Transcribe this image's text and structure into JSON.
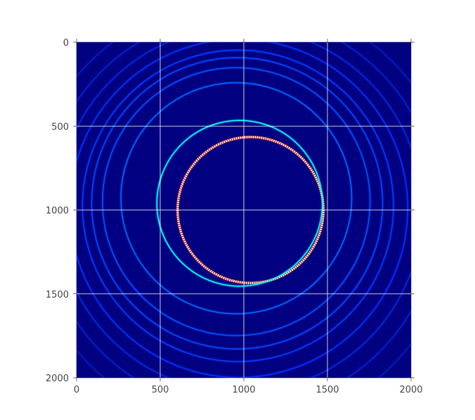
{
  "chart_data": {
    "type": "heatmap",
    "title": "",
    "xlabel": "",
    "ylabel": "",
    "xlim": [
      0,
      2000
    ],
    "ylim": [
      2000,
      0
    ],
    "x_ticks": [
      {
        "value": 0,
        "label": "0"
      },
      {
        "value": 500,
        "label": "500"
      },
      {
        "value": 1000,
        "label": "1000"
      },
      {
        "value": 1500,
        "label": "1500"
      },
      {
        "value": 2000,
        "label": "2000"
      }
    ],
    "y_ticks": [
      {
        "value": 0,
        "label": "0"
      },
      {
        "value": 500,
        "label": "500"
      },
      {
        "value": 1000,
        "label": "1000"
      },
      {
        "value": 1500,
        "label": "1500"
      },
      {
        "value": 2000,
        "label": "2000"
      }
    ],
    "grid": true,
    "colormap": "jet",
    "background_color": "#000080",
    "grid_color": "#ffffff",
    "rings": [
      {
        "cx": 1040,
        "cy": 1000,
        "r": 436,
        "color": "#ffffcc",
        "style": "speckled"
      },
      {
        "cx": 975,
        "cy": 960,
        "r": 495,
        "color": "#00ffff",
        "style": "solid"
      },
      {
        "cx": 955,
        "cy": 930,
        "r": 690,
        "color": "#0064ff",
        "style": "solid"
      },
      {
        "cx": 955,
        "cy": 950,
        "r": 800,
        "color": "#0050ff",
        "style": "solid"
      },
      {
        "cx": 960,
        "cy": 960,
        "r": 870,
        "color": "#0046ff",
        "style": "solid"
      },
      {
        "cx": 965,
        "cy": 975,
        "r": 930,
        "color": "#003cff",
        "style": "solid"
      },
      {
        "cx": 970,
        "cy": 990,
        "r": 1010,
        "color": "#0032ff",
        "style": "solid"
      },
      {
        "cx": 975,
        "cy": 1000,
        "r": 1090,
        "color": "#002ae0",
        "style": "solid"
      },
      {
        "cx": 980,
        "cy": 1010,
        "r": 1180,
        "color": "#0024d0",
        "style": "solid"
      },
      {
        "cx": 985,
        "cy": 1020,
        "r": 1280,
        "color": "#001ec0",
        "style": "solid"
      }
    ]
  }
}
